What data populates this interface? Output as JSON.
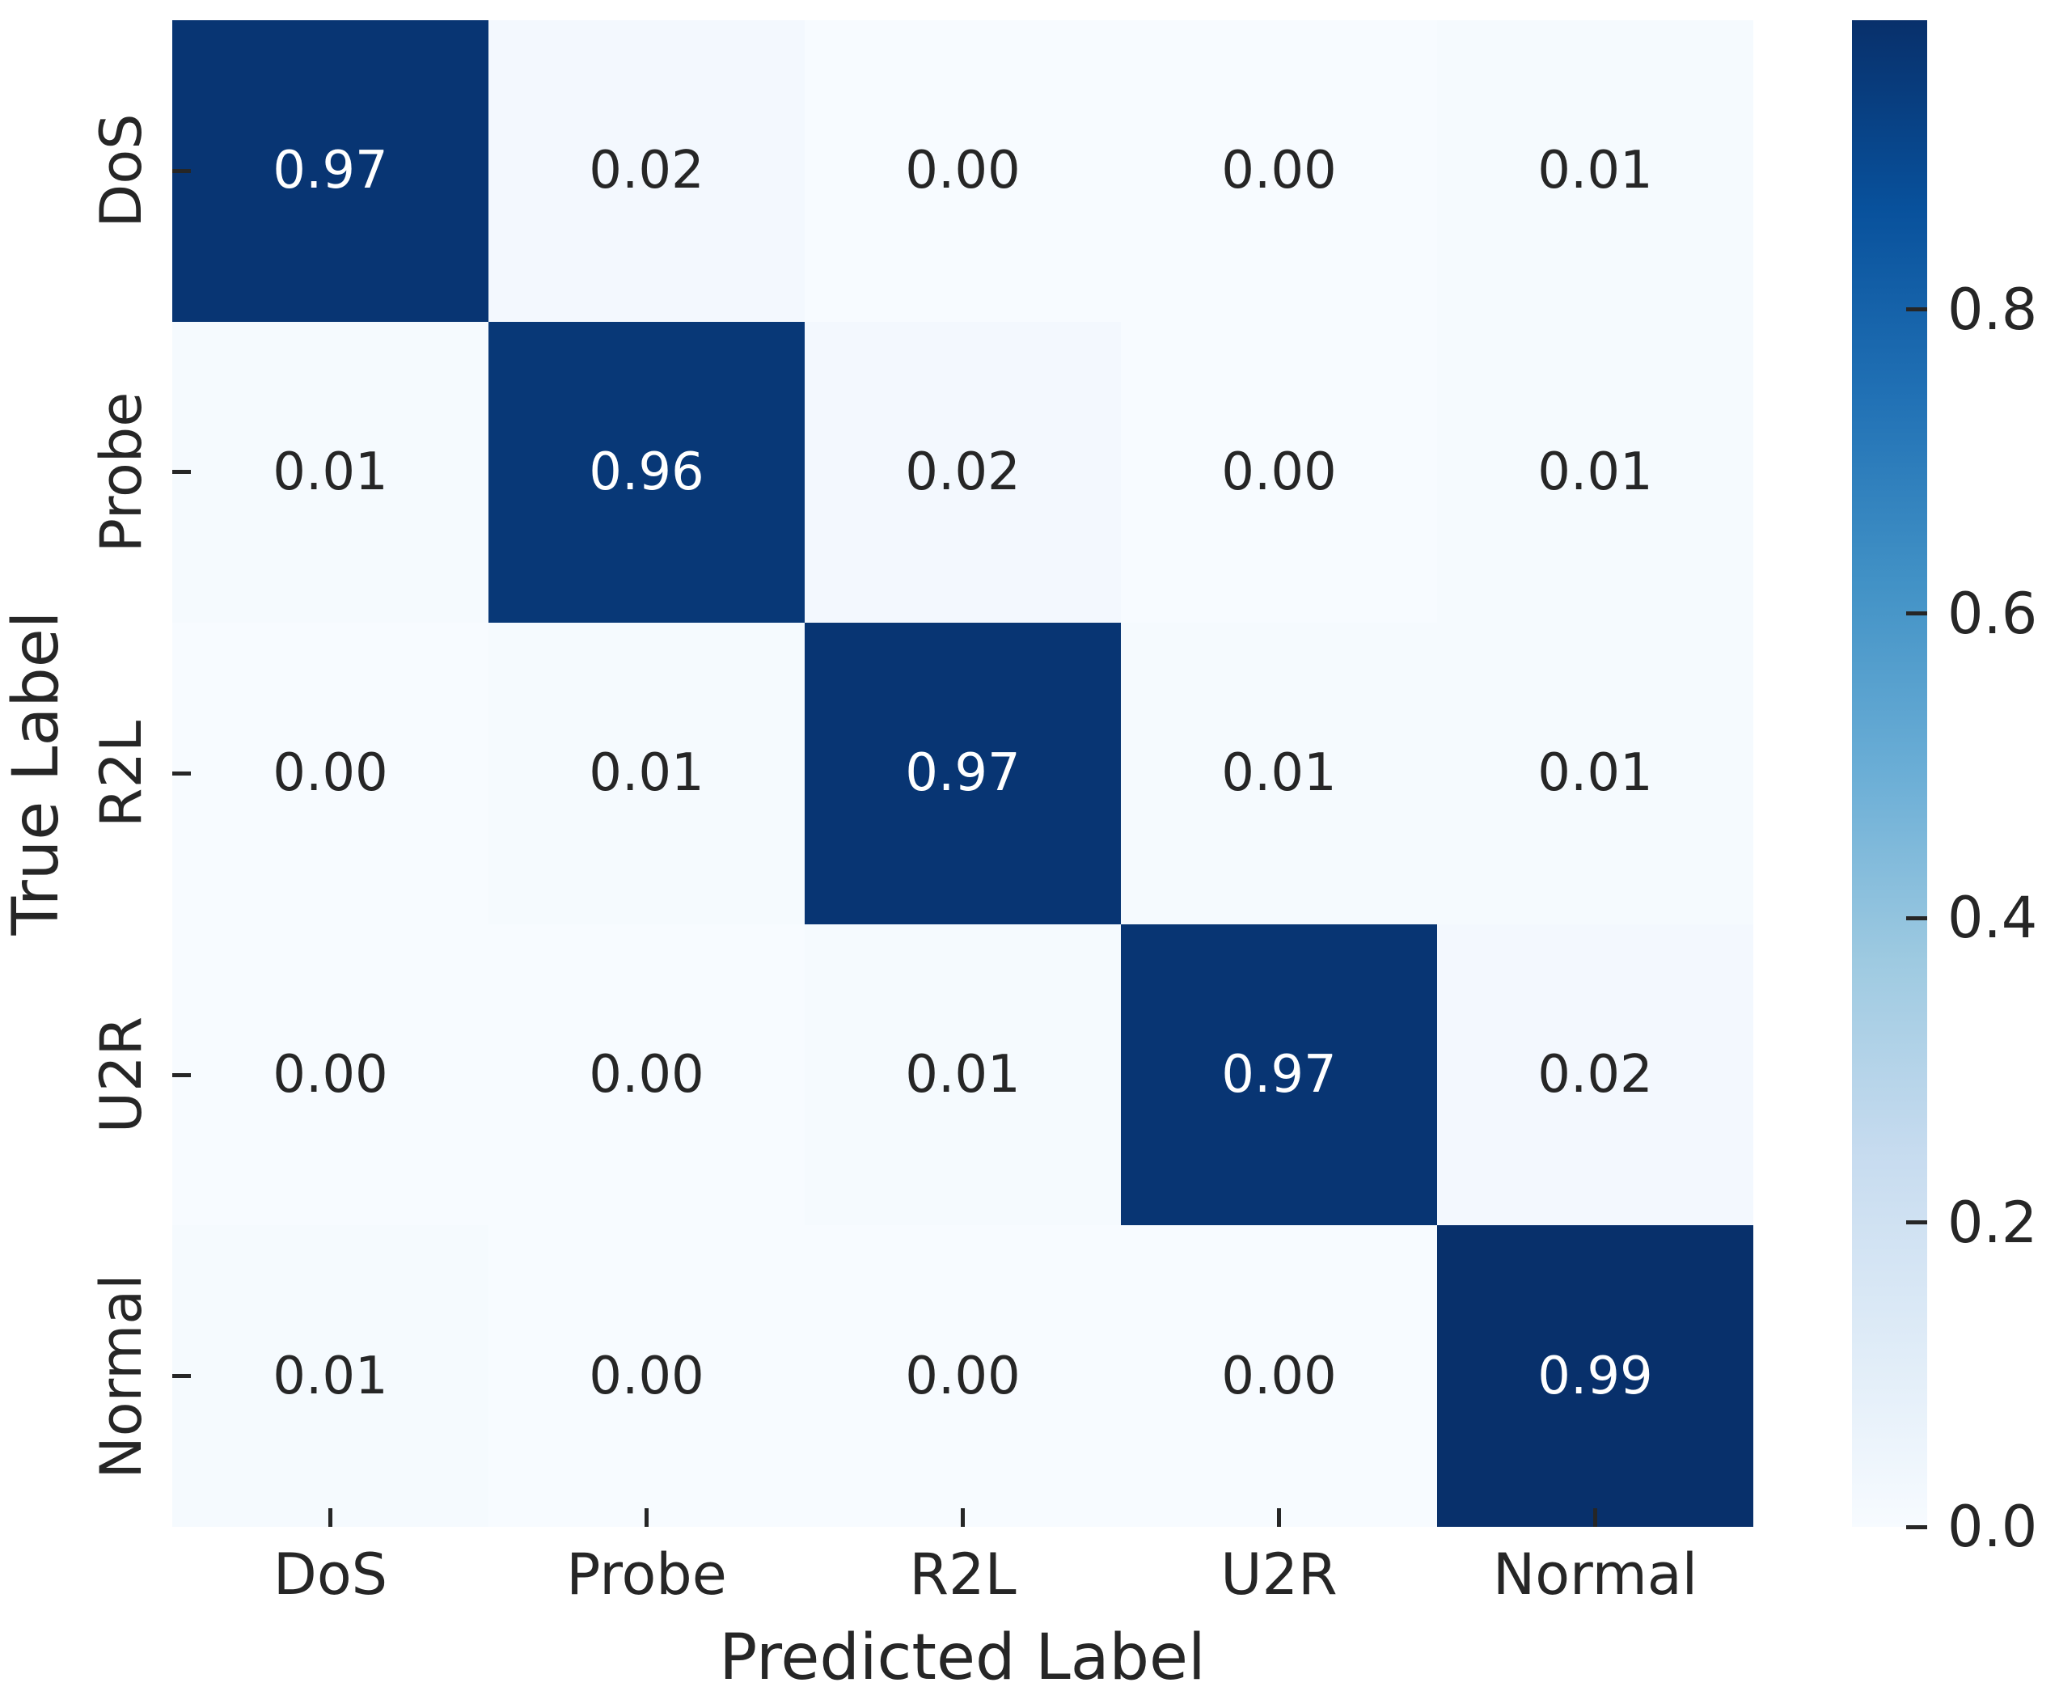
{
  "chart_data": {
    "type": "heatmap",
    "subtype": "confusion-matrix",
    "xlabel": "Predicted Label",
    "ylabel": "True Label",
    "x_categories": [
      "DoS",
      "Probe",
      "R2L",
      "U2R",
      "Normal"
    ],
    "y_categories": [
      "DoS",
      "Probe",
      "R2L",
      "U2R",
      "Normal"
    ],
    "matrix": [
      [
        0.97,
        0.02,
        0.0,
        0.0,
        0.01
      ],
      [
        0.01,
        0.96,
        0.02,
        0.0,
        0.01
      ],
      [
        0.0,
        0.01,
        0.97,
        0.01,
        0.01
      ],
      [
        0.0,
        0.0,
        0.01,
        0.97,
        0.02
      ],
      [
        0.01,
        0.0,
        0.0,
        0.0,
        0.99
      ]
    ],
    "value_format": "0.00",
    "colormap": "Blues",
    "vmin": 0.0,
    "vmax": 0.99,
    "grid": false,
    "legend_position": "right-colorbar",
    "colorbar": {
      "tick_values": [
        0.8,
        0.6,
        0.4,
        0.2,
        0.0
      ],
      "tick_labels": [
        "0.8",
        "0.6",
        "0.4",
        "0.2",
        "0.0"
      ]
    },
    "colors": {
      "cmap_high": "#08306b",
      "cmap_low": "#f7fbff",
      "annotation_dark_text": "#262626",
      "annotation_light_text": "#ffffff",
      "tick_color": "#262626",
      "background": "#ffffff"
    }
  }
}
